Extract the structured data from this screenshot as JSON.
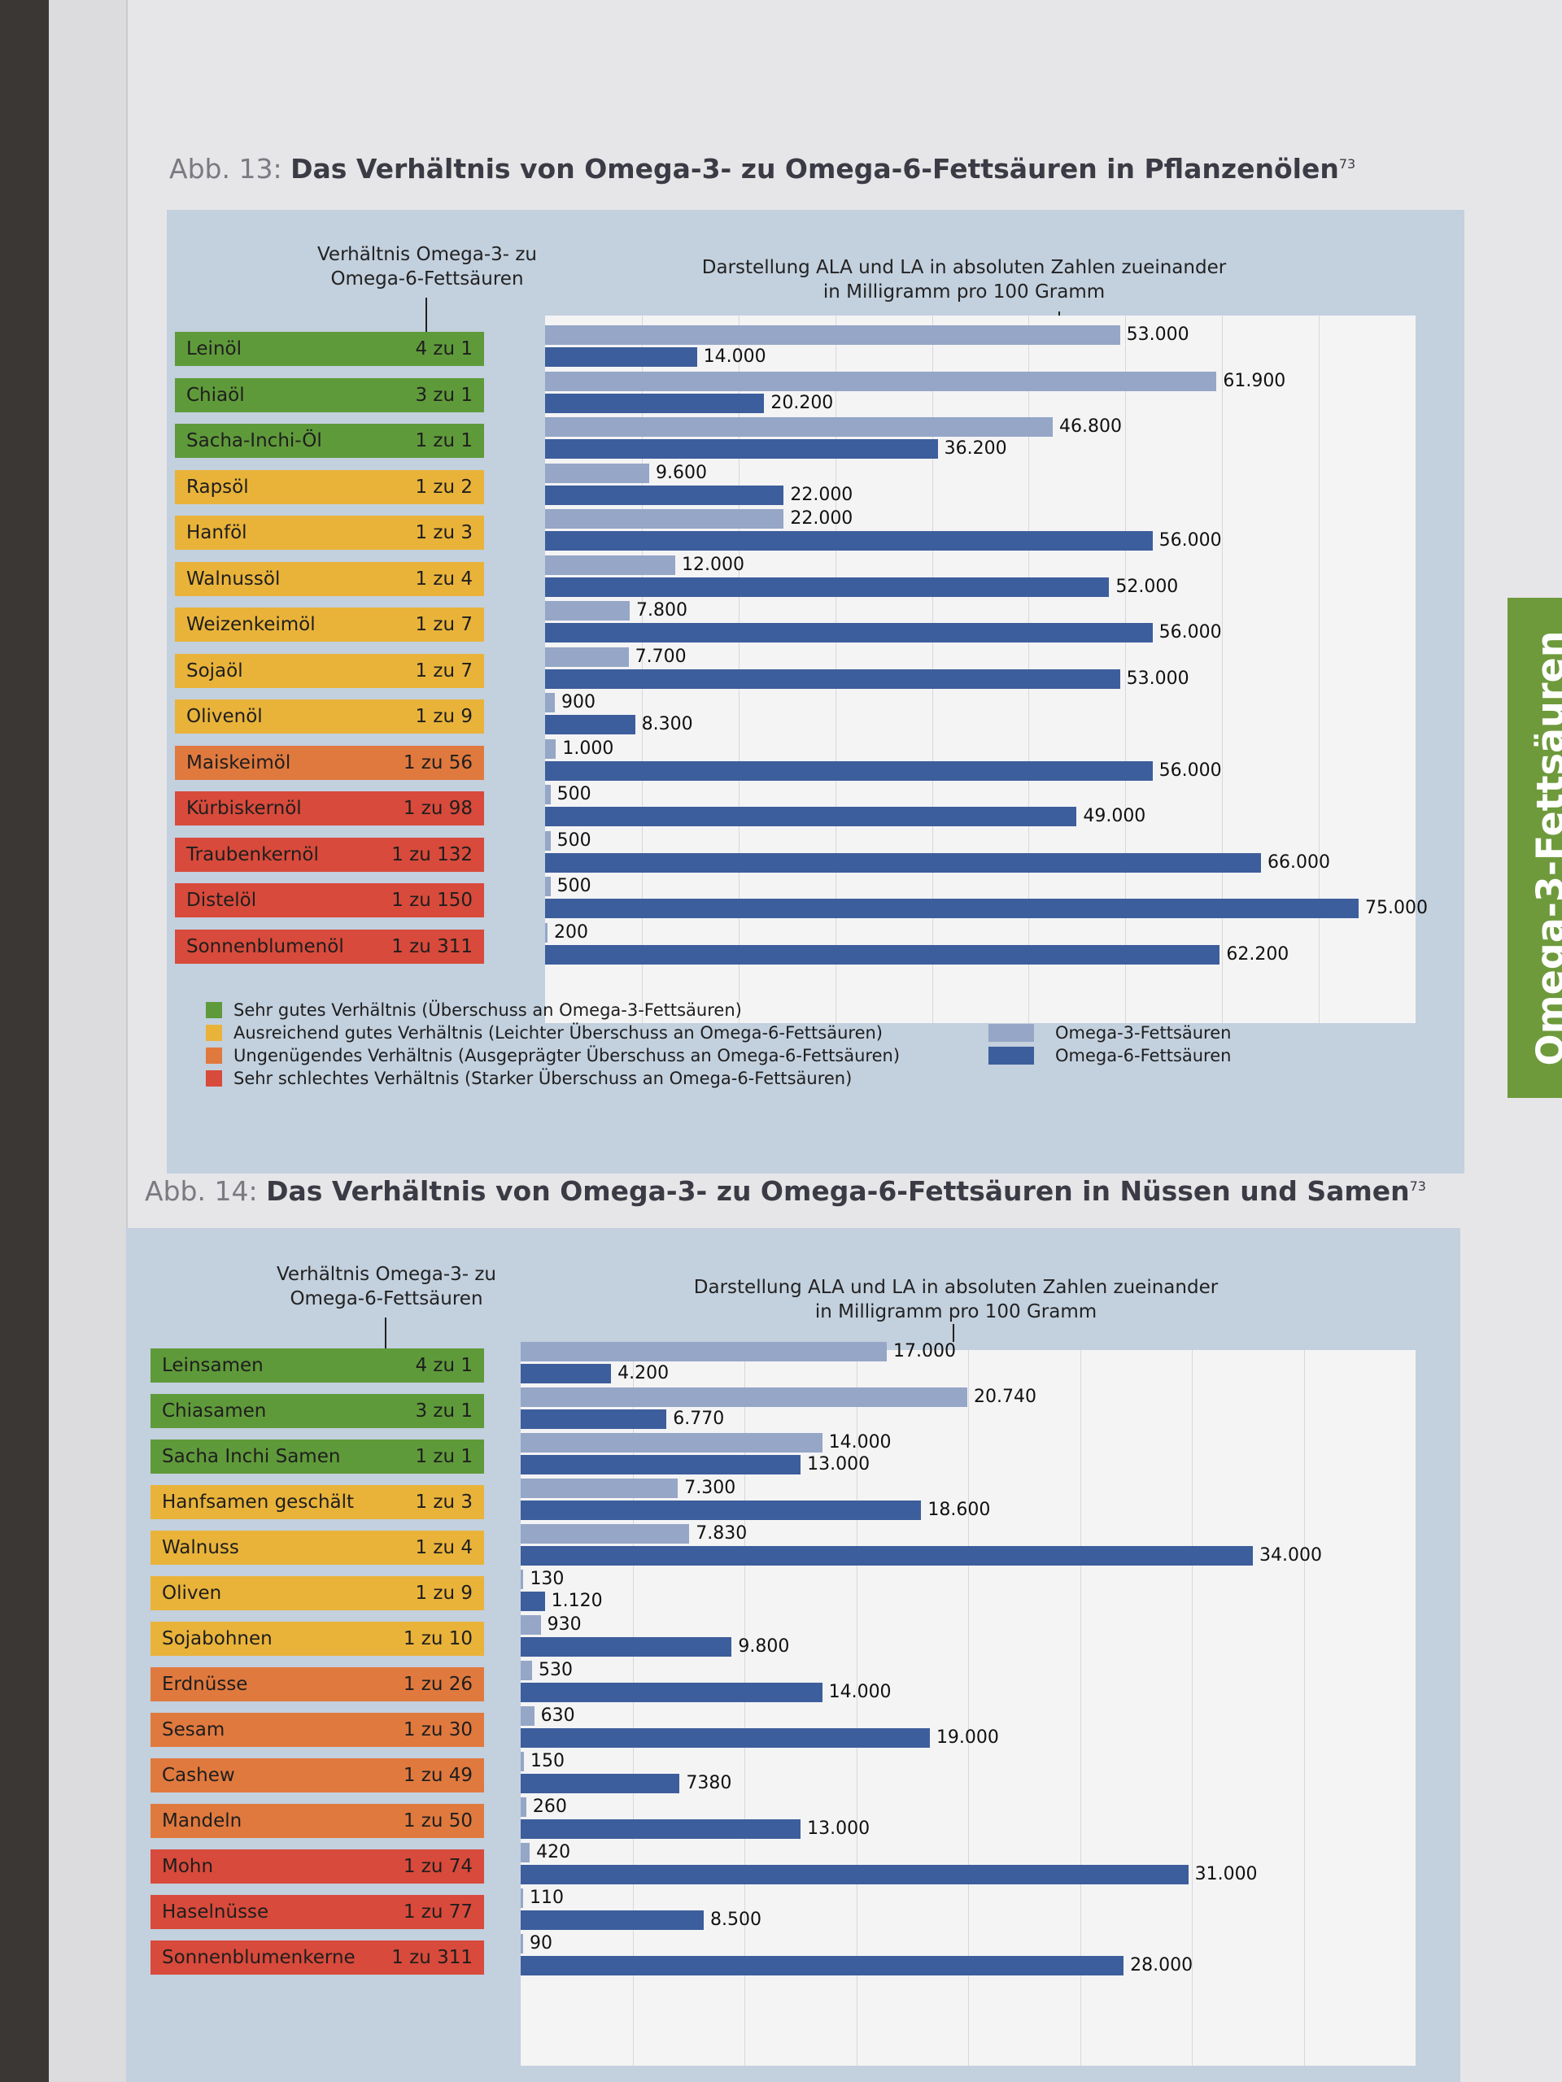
{
  "colors": {
    "very_good": "#5f9a3a",
    "sufficient": "#e9b33a",
    "insufficient": "#e0793e",
    "very_bad": "#d84a3b",
    "omega3": "#95a6c7",
    "omega6": "#3d5e9c"
  },
  "side_tab": "Omega-3-Fettsäuren",
  "figures": [
    {
      "title_prefix": "Abb. 13:",
      "title": "Das Verhältnis von Omega-3- zu Omega-6-Fettsäuren in Pflanzenölen",
      "footnote": "73",
      "ratio_header": "Verhältnis Omega-3- zu\nOmega-6-Fettsäuren",
      "values_header": "Darstellung ALA und LA in absoluten Zahlen zueinander\nin Milligramm pro 100 Gramm",
      "legend": [
        "Sehr gutes Verhältnis (Überschuss an Omega-3-Fettsäuren)",
        "Ausreichend gutes Verhältnis (Leichter Überschuss an Omega-6-Fettsäuren)",
        "Ungenügendes Verhältnis (Ausgeprägter Überschuss an Omega-6-Fettsäuren)",
        "Sehr schlechtes Verhältnis (Starker Überschuss an Omega-6-Fettsäuren)"
      ],
      "series_legend": [
        "Omega-3-Fettsäuren",
        "Omega-6-Fettsäuren"
      ]
    },
    {
      "title_prefix": "Abb. 14:",
      "title": "Das Verhältnis von Omega-3- zu Omega-6-Fettsäuren in Nüssen und Samen",
      "footnote": "73",
      "ratio_header": "Verhältnis Omega-3- zu\nOmega-6-Fettsäuren",
      "values_header": "Darstellung ALA und LA in absoluten Zahlen zueinander\nin Milligramm pro 100 Gramm"
    }
  ],
  "chart_data": [
    {
      "type": "bar",
      "orientation": "horizontal",
      "title": "Das Verhältnis von Omega-3- zu Omega-6-Fettsäuren in Pflanzenölen",
      "categories": [
        "Leinöl",
        "Chiaöl",
        "Sacha-Inchi-Öl",
        "Rapsöl",
        "Hanföl",
        "Walnussöl",
        "Weizenkeimöl",
        "Sojaöl",
        "Olivenöl",
        "Maiskeimöl",
        "Kürbiskernöl",
        "Traubenkernöl",
        "Distelöl",
        "Sonnenblumenöl"
      ],
      "ratios": [
        "4 zu 1",
        "3 zu 1",
        "1 zu 1",
        "1 zu 2",
        "1 zu 3",
        "1 zu 4",
        "1 zu 7",
        "1 zu 7",
        "1 zu 9",
        "1 zu 56",
        "1 zu 98",
        "1 zu 132",
        "1 zu 150",
        "1 zu 311"
      ],
      "rating": [
        0,
        0,
        0,
        1,
        1,
        1,
        1,
        1,
        1,
        2,
        3,
        3,
        3,
        3
      ],
      "series": [
        {
          "name": "Omega-3-Fettsäuren",
          "values": [
            53000,
            61900,
            46800,
            9600,
            22000,
            12000,
            7800,
            7700,
            900,
            1000,
            500,
            500,
            500,
            200
          ]
        },
        {
          "name": "Omega-6-Fettsäuren",
          "values": [
            14000,
            20200,
            36200,
            22000,
            56000,
            52000,
            56000,
            53000,
            8300,
            56000,
            49000,
            66000,
            75000,
            62200
          ]
        }
      ],
      "value_labels": {
        "omega3": [
          "53.000",
          "61.900",
          "46.800",
          "9.600",
          "22.000",
          "12.000",
          "7.800",
          "7.700",
          "900",
          "1.000",
          "500",
          "500",
          "500",
          "200"
        ],
        "omega6": [
          "14.000",
          "20.200",
          "36.200",
          "22.000",
          "56.000",
          "52.000",
          "56.000",
          "53.000",
          "8.300",
          "56.000",
          "49.000",
          "66.000",
          "75.000",
          "62.200"
        ]
      },
      "xlim": [
        0,
        75000
      ]
    },
    {
      "type": "bar",
      "orientation": "horizontal",
      "title": "Das Verhältnis von Omega-3- zu Omega-6-Fettsäuren in Nüssen und Samen",
      "categories": [
        "Leinsamen",
        "Chiasamen",
        "Sacha Inchi Samen",
        "Hanfsamen geschält",
        "Walnuss",
        "Oliven",
        "Sojabohnen",
        "Erdnüsse",
        "Sesam",
        "Cashew",
        "Mandeln",
        "Mohn",
        "Haselnüsse",
        "Sonnenblumenkerne"
      ],
      "ratios": [
        "4 zu 1",
        "3 zu 1",
        "1 zu 1",
        "1 zu 3",
        "1 zu 4",
        "1 zu 9",
        "1 zu 10",
        "1 zu 26",
        "1 zu 30",
        "1 zu 49",
        "1 zu 50",
        "1 zu 74",
        "1 zu 77",
        "1 zu 311"
      ],
      "rating": [
        0,
        0,
        0,
        1,
        1,
        1,
        1,
        2,
        2,
        2,
        2,
        3,
        3,
        3
      ],
      "series": [
        {
          "name": "Omega-3-Fettsäuren",
          "values": [
            17000,
            20740,
            14000,
            7300,
            7830,
            130,
            930,
            530,
            630,
            150,
            260,
            420,
            110,
            90
          ]
        },
        {
          "name": "Omega-6-Fettsäuren",
          "values": [
            4200,
            6770,
            13000,
            18600,
            34000,
            1120,
            9800,
            14000,
            19000,
            7380,
            13000,
            31000,
            8500,
            28000
          ]
        }
      ],
      "value_labels": {
        "omega3": [
          "17.000",
          "20.740",
          "14.000",
          "7.300",
          "7.830",
          "130",
          "930",
          "530",
          "630",
          "150",
          "260",
          "420",
          "110",
          "90"
        ],
        "omega6": [
          "4.200",
          "6.770",
          "13.000",
          "18.600",
          "34.000",
          "1.120",
          "9.800",
          "14.000",
          "19.000",
          "7380",
          "13.000",
          "31.000",
          "8.500",
          "28.000"
        ]
      },
      "xlim": [
        0,
        34000
      ]
    }
  ]
}
